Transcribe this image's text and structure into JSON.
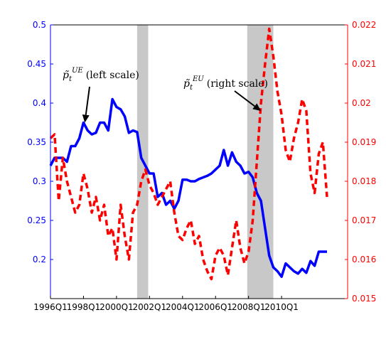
{
  "chart_data": {
    "type": "line",
    "x_tick_labels": [
      "1996Q1",
      "1998Q1",
      "2000Q1",
      "2002Q1",
      "2004Q1",
      "2006Q1",
      "2008Q1",
      "2010Q1"
    ],
    "x_ticks": [
      1996.0,
      1998.0,
      2000.0,
      2002.0,
      2004.0,
      2006.0,
      2008.0,
      2010.0
    ],
    "xlim": [
      1996.0,
      2014.0
    ],
    "y_left": {
      "lim": [
        0.15,
        0.5
      ],
      "ticks": [
        0.2,
        0.25,
        0.3,
        0.35,
        0.4,
        0.45,
        0.5
      ],
      "tick_labels": [
        "0.2",
        "0.25",
        "0.3",
        "0.35",
        "0.4",
        "0.45",
        "0.5"
      ],
      "color": "#0000ff"
    },
    "y_right": {
      "lim": [
        0.015,
        0.022
      ],
      "ticks": [
        0.015,
        0.016,
        0.017,
        0.018,
        0.019,
        0.02,
        0.021,
        0.022
      ],
      "tick_labels": [
        "0.015",
        "0.016",
        "0.017",
        "0.018",
        "0.019",
        "0.02",
        "0.021",
        "0.022"
      ],
      "color": "#ff0000"
    },
    "recessions": [
      [
        2001.25,
        2001.92
      ],
      [
        2007.92,
        2009.5
      ]
    ],
    "grid": false,
    "series": [
      {
        "id": "ue",
        "axis": "left",
        "color": "#0000ff",
        "style": "solid",
        "x": [
          1996.0,
          1996.25,
          1996.5,
          1996.75,
          1997.0,
          1997.25,
          1997.5,
          1997.75,
          1998.0,
          1998.25,
          1998.5,
          1998.75,
          1999.0,
          1999.25,
          1999.5,
          1999.75,
          2000.0,
          2000.25,
          2000.5,
          2000.75,
          2001.0,
          2001.25,
          2001.5,
          2001.75,
          2002.0,
          2002.25,
          2002.5,
          2002.75,
          2003.0,
          2003.25,
          2003.5,
          2003.75,
          2004.0,
          2004.25,
          2004.5,
          2004.75,
          2005.0,
          2005.25,
          2005.5,
          2005.75,
          2006.0,
          2006.25,
          2006.5,
          2006.75,
          2007.0,
          2007.25,
          2007.5,
          2007.75,
          2008.0,
          2008.25,
          2008.5,
          2008.75,
          2009.0,
          2009.25,
          2009.5,
          2009.75,
          2010.0,
          2010.25,
          2010.5,
          2010.75,
          2011.0,
          2011.25,
          2011.5,
          2011.75,
          2012.0,
          2012.25,
          2012.5,
          2012.75
        ],
        "values": [
          0.32,
          0.33,
          0.33,
          0.33,
          0.325,
          0.345,
          0.345,
          0.355,
          0.375,
          0.365,
          0.36,
          0.362,
          0.375,
          0.375,
          0.365,
          0.405,
          0.395,
          0.392,
          0.383,
          0.362,
          0.365,
          0.363,
          0.33,
          0.32,
          0.31,
          0.31,
          0.28,
          0.285,
          0.27,
          0.275,
          0.265,
          0.275,
          0.302,
          0.302,
          0.3,
          0.3,
          0.303,
          0.305,
          0.307,
          0.31,
          0.315,
          0.32,
          0.34,
          0.32,
          0.337,
          0.325,
          0.32,
          0.31,
          0.312,
          0.305,
          0.285,
          0.275,
          0.24,
          0.205,
          0.19,
          0.185,
          0.178,
          0.195,
          0.19,
          0.185,
          0.182,
          0.188,
          0.183,
          0.198,
          0.192,
          0.21,
          0.21,
          0.21
        ]
      },
      {
        "id": "eu",
        "axis": "right",
        "color": "#ff0000",
        "style": "dashed",
        "x": [
          1996.0,
          1996.25,
          1996.5,
          1996.75,
          1997.0,
          1997.25,
          1997.5,
          1997.75,
          1998.0,
          1998.25,
          1998.5,
          1998.75,
          1999.0,
          1999.25,
          1999.5,
          1999.75,
          2000.0,
          2000.25,
          2000.5,
          2000.75,
          2001.0,
          2001.25,
          2001.5,
          2001.75,
          2002.0,
          2002.25,
          2002.5,
          2002.75,
          2003.0,
          2003.25,
          2003.5,
          2003.75,
          2004.0,
          2004.25,
          2004.5,
          2004.75,
          2005.0,
          2005.25,
          2005.5,
          2005.75,
          2006.0,
          2006.25,
          2006.5,
          2006.75,
          2007.0,
          2007.25,
          2007.5,
          2007.75,
          2008.0,
          2008.25,
          2008.5,
          2008.75,
          2009.0,
          2009.25,
          2009.5,
          2009.75,
          2010.0,
          2010.25,
          2010.5,
          2010.75,
          2011.0,
          2011.25,
          2011.5,
          2011.75,
          2012.0,
          2012.25,
          2012.5,
          2012.75
        ],
        "values": [
          0.0191,
          0.0192,
          0.0175,
          0.0186,
          0.018,
          0.0176,
          0.0172,
          0.0174,
          0.0182,
          0.0178,
          0.0172,
          0.0176,
          0.017,
          0.0174,
          0.0166,
          0.0168,
          0.016,
          0.0174,
          0.0166,
          0.016,
          0.0172,
          0.0174,
          0.018,
          0.0183,
          0.0179,
          0.0177,
          0.0174,
          0.0176,
          0.0178,
          0.018,
          0.0172,
          0.0166,
          0.0165,
          0.0168,
          0.017,
          0.0164,
          0.0166,
          0.016,
          0.0157,
          0.0155,
          0.0161,
          0.0163,
          0.0161,
          0.0156,
          0.0163,
          0.017,
          0.0163,
          0.0159,
          0.0162,
          0.017,
          0.0185,
          0.02,
          0.021,
          0.0219,
          0.0212,
          0.0203,
          0.0197,
          0.0188,
          0.0185,
          0.0191,
          0.0195,
          0.0201,
          0.0198,
          0.0182,
          0.0177,
          0.0187,
          0.019,
          0.0176
        ]
      }
    ],
    "annotations": [
      {
        "id": "ann-ue",
        "base": "p̃",
        "sub": "t",
        "sup": "UE",
        "text": "(left scale)",
        "arrow_to": [
          1998.08,
          0.375
        ],
        "arrow_axis": "left"
      },
      {
        "id": "ann-eu",
        "base": "p̃",
        "sub": "t",
        "sup": "EU",
        "text": "(right scale)",
        "arrow_to": [
          2008.75,
          0.0198
        ],
        "arrow_axis": "right"
      }
    ]
  }
}
